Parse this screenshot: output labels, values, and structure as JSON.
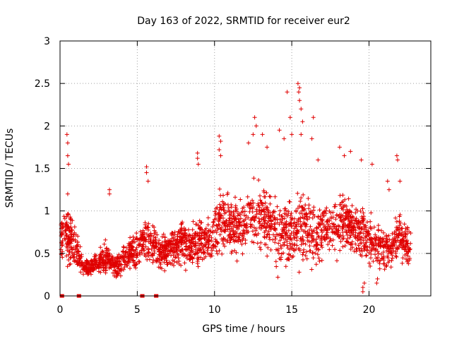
{
  "chart_data": {
    "type": "scatter",
    "title": "Day 163 of 2022, SRMTID for receiver eur2",
    "xlabel": "GPS time / hours",
    "ylabel": "SRMTID / TECUs",
    "xlim": [
      0,
      24
    ],
    "ylim": [
      0,
      3
    ],
    "x_ticks": [
      0,
      5,
      10,
      15,
      20
    ],
    "x_tick_labels": [
      "0",
      "5",
      "10",
      "15",
      "20"
    ],
    "y_ticks": [
      0,
      0.5,
      1,
      1.5,
      2,
      2.5,
      3
    ],
    "y_tick_labels": [
      "0",
      "0.5",
      "1",
      "1.5",
      "2",
      "2.5",
      "3"
    ],
    "grid": true,
    "marker": "+",
    "marker_color": "#e00000",
    "series": [
      {
        "name": "SRMTID",
        "profile_x": [
          0,
          0.5,
          1,
          1.5,
          2,
          2.5,
          3,
          3.5,
          4,
          4.5,
          5,
          5.5,
          6,
          6.5,
          7,
          7.5,
          8,
          8.5,
          9,
          9.5,
          10,
          10.5,
          11,
          11.5,
          12,
          12.5,
          13,
          13.5,
          14,
          14.5,
          15,
          15.5,
          16,
          16.5,
          17,
          17.5,
          18,
          18.5,
          19,
          19.5,
          20,
          20.5,
          21,
          21.5,
          22,
          22.5
        ],
        "profile_median": [
          0.65,
          0.7,
          0.55,
          0.35,
          0.33,
          0.4,
          0.45,
          0.35,
          0.4,
          0.5,
          0.55,
          0.7,
          0.6,
          0.5,
          0.55,
          0.6,
          0.65,
          0.6,
          0.65,
          0.65,
          0.75,
          0.9,
          0.85,
          0.8,
          0.85,
          0.9,
          0.95,
          0.9,
          0.8,
          0.7,
          0.75,
          0.8,
          0.8,
          0.7,
          0.75,
          0.8,
          0.8,
          0.85,
          0.8,
          0.75,
          0.65,
          0.6,
          0.55,
          0.6,
          0.7,
          0.6
        ],
        "profile_spread": [
          0.3,
          0.45,
          0.35,
          0.15,
          0.15,
          0.2,
          0.25,
          0.2,
          0.2,
          0.25,
          0.3,
          0.35,
          0.3,
          0.25,
          0.3,
          0.3,
          0.35,
          0.35,
          0.4,
          0.35,
          0.45,
          0.45,
          0.45,
          0.45,
          0.5,
          0.55,
          0.55,
          0.5,
          0.5,
          0.45,
          0.6,
          0.65,
          0.55,
          0.45,
          0.45,
          0.45,
          0.45,
          0.45,
          0.4,
          0.4,
          0.4,
          0.35,
          0.35,
          0.35,
          0.4,
          0.3
        ],
        "spikes": [
          {
            "x": 0.45,
            "y": 1.9
          },
          {
            "x": 0.5,
            "y": 1.8
          },
          {
            "x": 0.5,
            "y": 1.65
          },
          {
            "x": 0.55,
            "y": 1.55
          },
          {
            "x": 0.5,
            "y": 1.2
          },
          {
            "x": 3.2,
            "y": 1.25
          },
          {
            "x": 3.2,
            "y": 1.2
          },
          {
            "x": 5.6,
            "y": 1.52
          },
          {
            "x": 5.6,
            "y": 1.45
          },
          {
            "x": 5.7,
            "y": 1.35
          },
          {
            "x": 8.9,
            "y": 1.68
          },
          {
            "x": 8.9,
            "y": 1.62
          },
          {
            "x": 8.95,
            "y": 1.55
          },
          {
            "x": 10.3,
            "y": 1.88
          },
          {
            "x": 10.4,
            "y": 1.82
          },
          {
            "x": 10.3,
            "y": 1.72
          },
          {
            "x": 10.4,
            "y": 1.65
          },
          {
            "x": 12.6,
            "y": 2.1
          },
          {
            "x": 12.7,
            "y": 2.0
          },
          {
            "x": 12.5,
            "y": 1.9
          },
          {
            "x": 12.2,
            "y": 1.8
          },
          {
            "x": 13.1,
            "y": 1.9
          },
          {
            "x": 13.4,
            "y": 1.75
          },
          {
            "x": 14.2,
            "y": 1.95
          },
          {
            "x": 14.5,
            "y": 1.85
          },
          {
            "x": 14.7,
            "y": 2.4
          },
          {
            "x": 14.9,
            "y": 2.1
          },
          {
            "x": 15.0,
            "y": 1.9
          },
          {
            "x": 15.4,
            "y": 2.5
          },
          {
            "x": 15.5,
            "y": 2.45
          },
          {
            "x": 15.45,
            "y": 2.4
          },
          {
            "x": 15.5,
            "y": 2.3
          },
          {
            "x": 15.6,
            "y": 2.2
          },
          {
            "x": 15.7,
            "y": 2.05
          },
          {
            "x": 15.6,
            "y": 1.9
          },
          {
            "x": 16.4,
            "y": 2.1
          },
          {
            "x": 16.3,
            "y": 1.85
          },
          {
            "x": 16.7,
            "y": 1.6
          },
          {
            "x": 18.1,
            "y": 1.75
          },
          {
            "x": 18.4,
            "y": 1.65
          },
          {
            "x": 18.8,
            "y": 1.7
          },
          {
            "x": 19.5,
            "y": 1.6
          },
          {
            "x": 21.2,
            "y": 1.35
          },
          {
            "x": 21.3,
            "y": 1.25
          },
          {
            "x": 21.8,
            "y": 1.65
          },
          {
            "x": 21.85,
            "y": 1.6
          },
          {
            "x": 22.0,
            "y": 1.35
          },
          {
            "x": 20.2,
            "y": 1.55
          }
        ],
        "dips": [
          {
            "x": 19.6,
            "y": 0.05
          },
          {
            "x": 19.6,
            "y": 0.1
          },
          {
            "x": 19.7,
            "y": 0.15
          },
          {
            "x": 20.5,
            "y": 0.15
          },
          {
            "x": 20.55,
            "y": 0.2
          },
          {
            "x": 14.1,
            "y": 0.22
          }
        ],
        "zero_x": [
          0.1,
          0.15,
          1.2,
          1.25,
          5.3,
          5.35,
          6.2,
          6.25
        ]
      }
    ]
  }
}
